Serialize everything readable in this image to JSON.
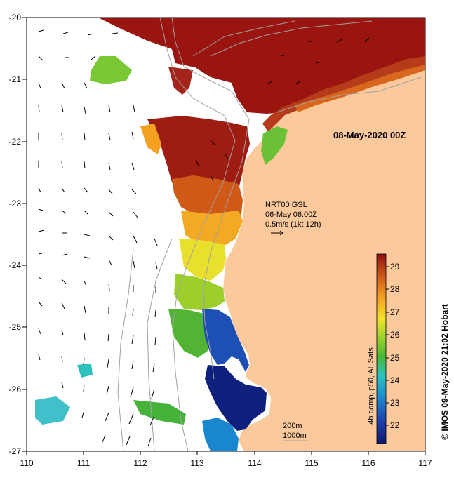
{
  "map": {
    "timestamp_label": "08-May-2020 00Z",
    "x_ticks": [
      "110",
      "111",
      "112",
      "113",
      "114",
      "115",
      "116",
      "117"
    ],
    "y_ticks": [
      "-20",
      "-21",
      "-22",
      "-23",
      "-24",
      "-25",
      "-26",
      "-27"
    ],
    "current_legend": {
      "line1": "NRT00 GSL",
      "line2": "06-May 06:00Z",
      "line3": "0.5m/s (1kt 12h)"
    },
    "depth_contours": {
      "line1": "200m",
      "line2": "1000m"
    },
    "credit": "© IMOS 09-May-2020 21:02 Hobart",
    "colors": {
      "land": "#fcc99c",
      "ocean_no_data": "#ffffff",
      "isobath": "#a0a0a0"
    }
  },
  "chart_data": {
    "type": "heatmap",
    "x_range": [
      110,
      117
    ],
    "y_range": [
      -27,
      -20
    ],
    "colorbar": {
      "label": "4h comp, p50, All Sats",
      "ticks": [
        "22",
        "23",
        "24",
        "25",
        "26",
        "27",
        "28",
        "29"
      ],
      "range": [
        21.2,
        29.6
      ]
    }
  }
}
